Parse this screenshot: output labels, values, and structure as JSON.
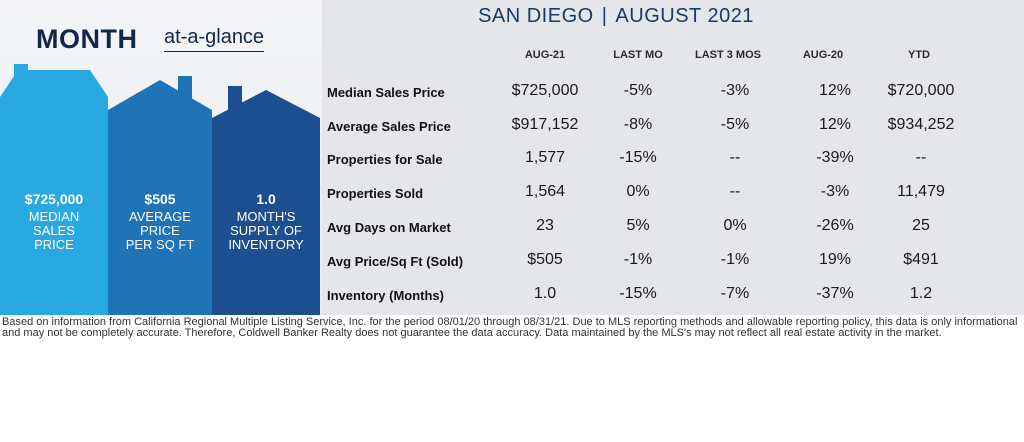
{
  "left_panel": {
    "title": "MONTH",
    "subtitle": "at-a-glance",
    "houses": [
      {
        "value": "$725,000",
        "label": "MEDIAN\nSALES\nPRICE",
        "color": "#29a9e1"
      },
      {
        "value": "$505",
        "label": "AVERAGE\nPRICE\nPER SQ FT",
        "color": "#1f74b8"
      },
      {
        "value": "1.0",
        "label": "MONTH'S\nSUPPLY OF\nINVENTORY",
        "color": "#1b4f8f"
      }
    ]
  },
  "header": {
    "location": "SAN DIEGO",
    "separator": "|",
    "period": "AUGUST 2021"
  },
  "table": {
    "columns": [
      "AUG-21",
      "LAST MO",
      "LAST 3 MOS",
      "AUG-20",
      "YTD"
    ],
    "rows": [
      {
        "label": "Median Sales Price",
        "values": [
          "$725,000",
          "-5%",
          "-3%",
          "12%",
          "$720,000"
        ]
      },
      {
        "label": "Average Sales Price",
        "values": [
          "$917,152",
          "-8%",
          "-5%",
          "12%",
          "$934,252"
        ]
      },
      {
        "label": "Properties for Sale",
        "values": [
          "1,577",
          "-15%",
          "--",
          "-39%",
          "--"
        ]
      },
      {
        "label": "Properties Sold",
        "values": [
          "1,564",
          "0%",
          "--",
          "-3%",
          "11,479"
        ]
      },
      {
        "label": "Avg Days on Market",
        "values": [
          "23",
          "5%",
          "0%",
          "-26%",
          "25"
        ]
      },
      {
        "label": "Avg Price/Sq Ft (Sold)",
        "values": [
          "$505",
          "-1%",
          "-1%",
          "19%",
          "$491"
        ]
      },
      {
        "label": "Inventory (Months)",
        "values": [
          "1.0",
          "-15%",
          "-7%",
          "-37%",
          "1.2"
        ]
      }
    ]
  },
  "footer": {
    "disclaimer": "Based on information from California Regional Multiple Listing Service, Inc. for the period 08/01/20 through 08/31/21. Due to MLS reporting methods and allowable reporting policy, this data is only informational and may not be completely accurate. Therefore, Coldwell Banker Realty does not guarantee the data accuracy. Data maintained by the MLS's may not reflect all real estate activity in the market."
  }
}
